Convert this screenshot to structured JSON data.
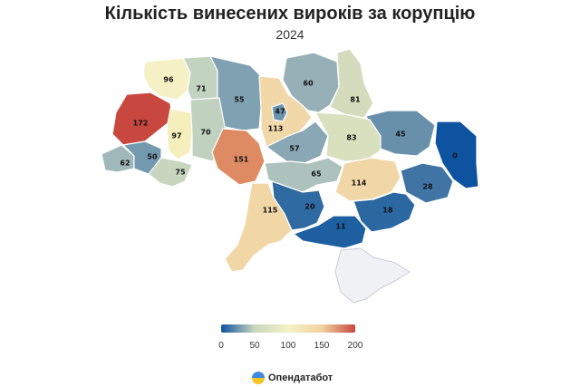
{
  "title": "Кількість винесених вироків за корупцію",
  "subtitle": "2024",
  "map": {
    "regions": [
      {
        "name": "Volyn",
        "value": "96",
        "color": "#f5f1c4"
      },
      {
        "name": "Rivne",
        "value": "71",
        "color": "#c2d3c2"
      },
      {
        "name": "Zhytomyr",
        "value": "55",
        "color": "#7fa1b1"
      },
      {
        "name": "Kyiv oblast",
        "value": "113",
        "color": "#f1d8a8"
      },
      {
        "name": "Kyiv city",
        "value": "47",
        "color": "#6a93ad"
      },
      {
        "name": "Chernihiv",
        "value": "60",
        "color": "#97b0b8"
      },
      {
        "name": "Sumy",
        "value": "81",
        "color": "#d4dcbd"
      },
      {
        "name": "Kharkiv",
        "value": "45",
        "color": "#6990aa"
      },
      {
        "name": "Luhansk",
        "value": "0",
        "color": "#0e53a0"
      },
      {
        "name": "Lviv",
        "value": "172",
        "color": "#c8483f"
      },
      {
        "name": "Ternopil",
        "value": "97",
        "color": "#f5efbd"
      },
      {
        "name": "Khmelnytskyi",
        "value": "70",
        "color": "#c0d1c0"
      },
      {
        "name": "Vinnytsia",
        "value": "151",
        "color": "#de8a62"
      },
      {
        "name": "Cherkasy",
        "value": "57",
        "color": "#89a7b4"
      },
      {
        "name": "Poltava",
        "value": "83",
        "color": "#d9e0be"
      },
      {
        "name": "Zakarpattia",
        "value": "62",
        "color": "#a1b8ba"
      },
      {
        "name": "Ivano-Frankivsk",
        "value": "50",
        "color": "#7399af"
      },
      {
        "name": "Chernivtsi",
        "value": "75",
        "color": "#c8d6bf"
      },
      {
        "name": "Kirovohrad",
        "value": "65",
        "color": "#adc2bd"
      },
      {
        "name": "Dnipropetrovsk",
        "value": "114",
        "color": "#f1d7a7"
      },
      {
        "name": "Donetsk",
        "value": "28",
        "color": "#3f74a4"
      },
      {
        "name": "Odesa",
        "value": "115",
        "color": "#f1d6a6"
      },
      {
        "name": "Mykolaiv",
        "value": "20",
        "color": "#2f6aa2"
      },
      {
        "name": "Kherson",
        "value": "11",
        "color": "#1e5fa2"
      },
      {
        "name": "Zaporizhzhia",
        "value": "18",
        "color": "#2b68a2"
      },
      {
        "name": "Crimea",
        "value": "",
        "color": "#f0f1f4"
      }
    ]
  },
  "legend": {
    "ticks": [
      "0",
      "50",
      "100",
      "150",
      "200"
    ],
    "colors": [
      "#0e53a0",
      "#c9d6be",
      "#f5f1c4",
      "#f1d3a0",
      "#c8483f"
    ]
  },
  "brand": {
    "name": "Опендатабот",
    "icon": "opendatabot-logo-icon"
  }
}
